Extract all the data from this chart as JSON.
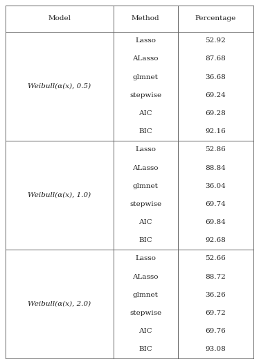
{
  "header": [
    "Model",
    "Method",
    "Percentage"
  ],
  "rows": [
    {
      "model": "Weibull(α(x), 0.5)",
      "methods": [
        "Lasso",
        "ALasso",
        "glmnet",
        "stepwise",
        "AIC",
        "BIC"
      ],
      "percentages": [
        "52.92",
        "87.68",
        "36.68",
        "69.24",
        "69.28",
        "92.16"
      ]
    },
    {
      "model": "Weibull(α(x), 1.0)",
      "methods": [
        "Lasso",
        "ALasso",
        "glmnet",
        "stepwise",
        "AIC",
        "BIC"
      ],
      "percentages": [
        "52.86",
        "88.84",
        "36.04",
        "69.74",
        "69.84",
        "92.68"
      ]
    },
    {
      "model": "Weibull(α(x), 2.0)",
      "methods": [
        "Lasso",
        "ALasso",
        "glmnet",
        "stepwise",
        "AIC",
        "BIC"
      ],
      "percentages": [
        "52.66",
        "88.72",
        "36.26",
        "69.72",
        "69.76",
        "93.08"
      ]
    }
  ],
  "line_color": "#666666",
  "text_color": "#222222",
  "font_size": 7.5,
  "header_font_size": 7.5,
  "fig_width": 3.74,
  "fig_height": 5.25,
  "dpi": 100
}
